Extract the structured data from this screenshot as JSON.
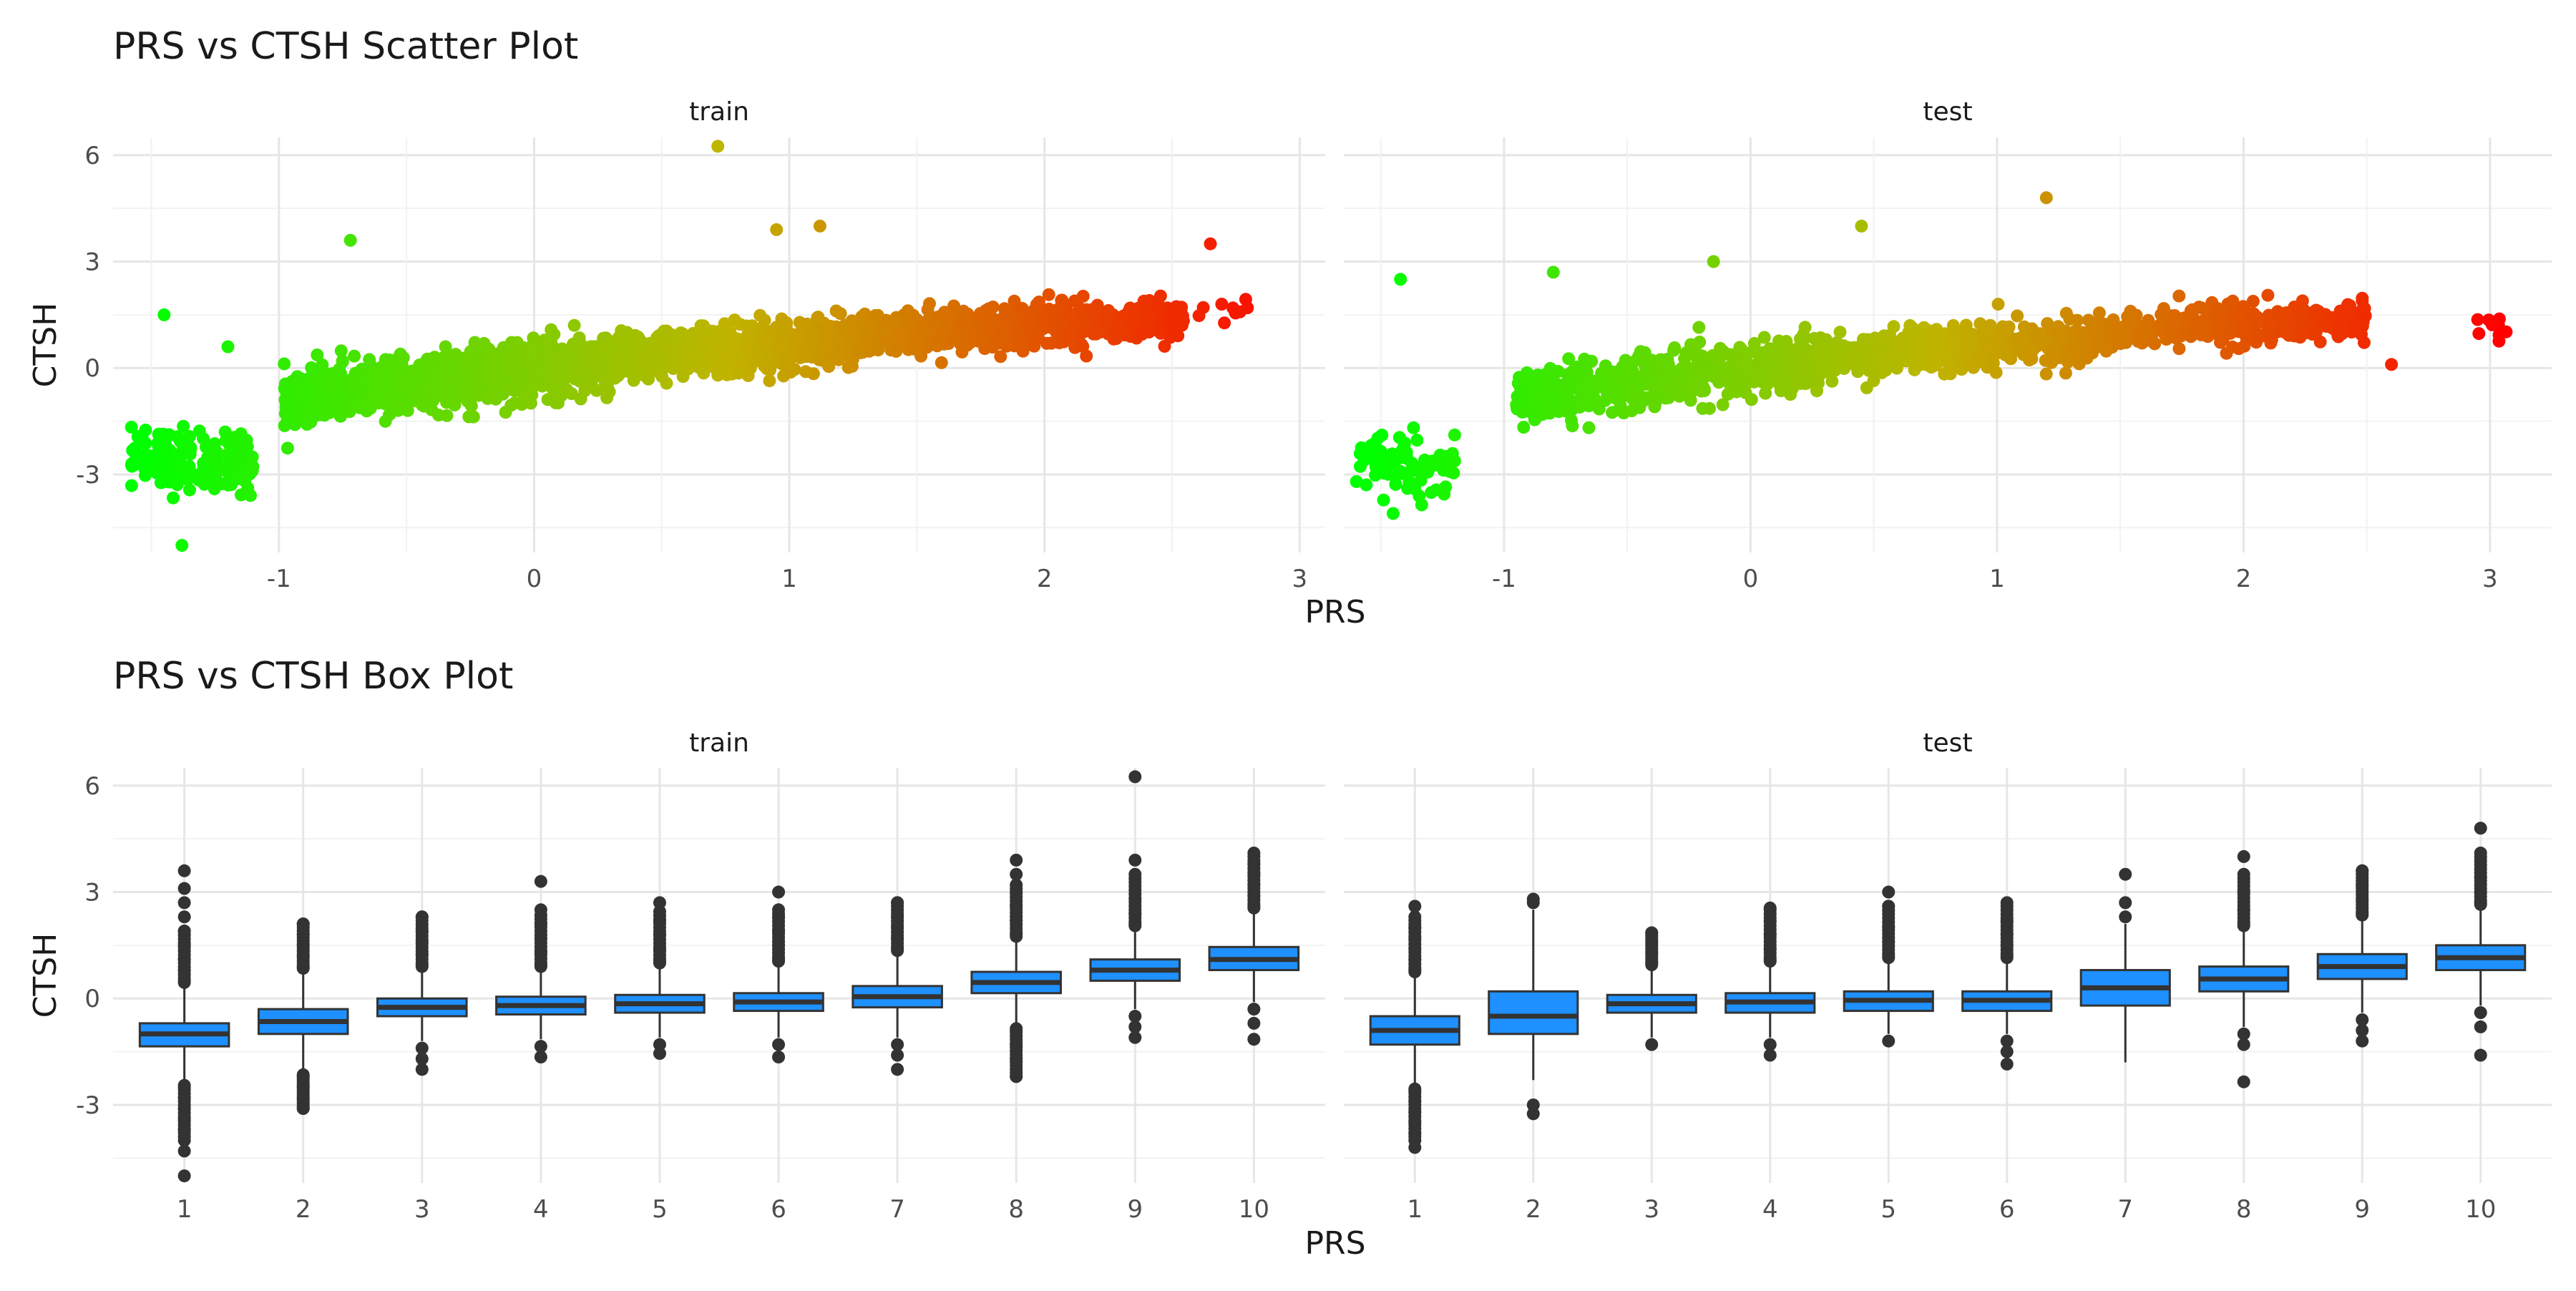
{
  "chart_data": [
    {
      "type": "scatter",
      "title": "PRS vs CTSH Scatter Plot",
      "xlabel": "PRS",
      "ylabel": "CTSH",
      "grid": true,
      "legend": "none",
      "color_scale": {
        "low": "#00ff00",
        "mid": "#c0b400",
        "high": "#ff0000"
      },
      "facets": [
        {
          "label": "train",
          "xlim": [
            -1.65,
            3.1
          ],
          "ylim": [
            -5.2,
            6.5
          ],
          "xticks": [
            -1,
            0,
            1,
            2,
            3
          ],
          "yticks": [
            -3,
            0,
            3,
            6
          ],
          "clusters": [
            {
              "x_range": [
                -1.58,
                -1.1
              ],
              "y_center": -2.6,
              "y_spread": 0.8,
              "n": 160
            },
            {
              "x_range": [
                -0.98,
                0.25
              ],
              "slope": 0.9,
              "y_at_x0": -0.05,
              "y_spread": 0.7,
              "n": 900
            },
            {
              "x_range": [
                0.25,
                1.3
              ],
              "slope": 0.55,
              "y_at_x0": 0.1,
              "y_spread": 0.6,
              "n": 800
            },
            {
              "x_range": [
                1.3,
                2.55
              ],
              "slope": 0.3,
              "y_at_x0": 0.6,
              "y_spread": 0.5,
              "n": 700
            },
            {
              "x_range": [
                2.55,
                2.8
              ],
              "y_center": 1.6,
              "y_spread": 0.4,
              "n": 10
            }
          ],
          "outliers": [
            [
              0.72,
              6.25
            ],
            [
              -1.38,
              -5.0
            ],
            [
              -0.72,
              3.6
            ],
            [
              -1.45,
              1.5
            ],
            [
              1.12,
              4.0
            ],
            [
              2.65,
              3.5
            ],
            [
              -1.2,
              0.6
            ],
            [
              0.95,
              3.9
            ]
          ]
        },
        {
          "label": "test",
          "xlim": [
            -1.65,
            3.25
          ],
          "ylim": [
            -5.2,
            6.5
          ],
          "xticks": [
            -1,
            0,
            1,
            2,
            3
          ],
          "yticks": [
            -3,
            0,
            3,
            6
          ],
          "clusters": [
            {
              "x_range": [
                -1.6,
                -1.2
              ],
              "y_center": -2.7,
              "y_spread": 0.7,
              "n": 80
            },
            {
              "x_range": [
                -0.95,
                0.3
              ],
              "slope": 0.85,
              "y_at_x0": -0.05,
              "y_spread": 0.7,
              "n": 600
            },
            {
              "x_range": [
                0.3,
                1.4
              ],
              "slope": 0.5,
              "y_at_x0": 0.15,
              "y_spread": 0.55,
              "n": 500
            },
            {
              "x_range": [
                1.4,
                2.5
              ],
              "slope": 0.3,
              "y_at_x0": 0.6,
              "y_spread": 0.5,
              "n": 400
            },
            {
              "x_range": [
                2.9,
                3.1
              ],
              "y_center": 1.1,
              "y_spread": 0.35,
              "n": 9
            }
          ],
          "outliers": [
            [
              1.2,
              4.8
            ],
            [
              -1.42,
              2.5
            ],
            [
              -1.45,
              -4.1
            ],
            [
              -0.15,
              3.0
            ],
            [
              0.45,
              4.0
            ],
            [
              -0.8,
              2.7
            ],
            [
              2.6,
              0.1
            ]
          ]
        }
      ]
    },
    {
      "type": "box",
      "title": "PRS vs CTSH Box Plot",
      "xlabel": "PRS",
      "ylabel": "CTSH",
      "grid": true,
      "fill_color": "#1e90ff",
      "categories": [
        "1",
        "2",
        "3",
        "4",
        "5",
        "6",
        "7",
        "8",
        "9",
        "10"
      ],
      "yticks": [
        -3,
        0,
        3,
        6
      ],
      "ylim": [
        -5.2,
        6.5
      ],
      "facets": [
        {
          "label": "train",
          "boxes": [
            {
              "q1": -1.35,
              "median": -1.0,
              "q3": -0.7,
              "lower": -2.3,
              "upper": 0.3,
              "outliers_hi": [
                0.5,
                0.8,
                1.1,
                1.5,
                1.9,
                2.3,
                2.7,
                3.1,
                3.6
              ],
              "outliers_lo": [
                -2.5,
                -2.8,
                -3.1,
                -3.4,
                -3.7,
                -4.0,
                -4.3,
                -5.0
              ]
            },
            {
              "q1": -1.0,
              "median": -0.65,
              "q3": -0.3,
              "lower": -2.0,
              "upper": 0.7,
              "outliers_hi": [
                0.9,
                1.2,
                1.5,
                1.8,
                2.1
              ],
              "outliers_lo": [
                -2.2,
                -2.5,
                -2.8,
                -3.1
              ]
            },
            {
              "q1": -0.5,
              "median": -0.25,
              "q3": 0.0,
              "lower": -1.2,
              "upper": 0.75,
              "outliers_hi": [
                0.95,
                1.25,
                1.6,
                1.9,
                2.3
              ],
              "outliers_lo": [
                -1.4,
                -1.7,
                -2.0
              ]
            },
            {
              "q1": -0.45,
              "median": -0.2,
              "q3": 0.05,
              "lower": -1.15,
              "upper": 0.75,
              "outliers_hi": [
                0.95,
                1.3,
                1.7,
                2.1,
                2.5,
                3.3
              ],
              "outliers_lo": [
                -1.35,
                -1.65
              ]
            },
            {
              "q1": -0.4,
              "median": -0.15,
              "q3": 0.1,
              "lower": -1.1,
              "upper": 0.85,
              "outliers_hi": [
                1.05,
                1.4,
                1.8,
                2.2,
                2.7
              ],
              "outliers_lo": [
                -1.3,
                -1.55
              ]
            },
            {
              "q1": -0.35,
              "median": -0.1,
              "q3": 0.15,
              "lower": -1.1,
              "upper": 0.9,
              "outliers_hi": [
                1.1,
                1.5,
                1.9,
                2.3,
                3.0
              ],
              "outliers_lo": [
                -1.3,
                -1.65
              ]
            },
            {
              "q1": -0.25,
              "median": 0.05,
              "q3": 0.35,
              "lower": -1.1,
              "upper": 1.2,
              "outliers_hi": [
                1.4,
                1.7,
                2.0,
                2.3,
                2.7
              ],
              "outliers_lo": [
                -1.3,
                -1.6,
                -2.0
              ]
            },
            {
              "q1": 0.15,
              "median": 0.45,
              "q3": 0.75,
              "lower": -0.7,
              "upper": 1.6,
              "outliers_hi": [
                1.8,
                2.2,
                2.6,
                3.0,
                3.5,
                3.9
              ],
              "outliers_lo": [
                -0.9,
                -1.3,
                -1.7,
                -2.2
              ]
            },
            {
              "q1": 0.5,
              "median": 0.8,
              "q3": 1.1,
              "lower": -0.3,
              "upper": 1.9,
              "outliers_hi": [
                2.1,
                2.4,
                2.8,
                3.9,
                6.25
              ],
              "outliers_lo": [
                -0.5,
                -0.8,
                -1.1
              ]
            },
            {
              "q1": 0.8,
              "median": 1.1,
              "q3": 1.45,
              "lower": -0.1,
              "upper": 2.4,
              "outliers_hi": [
                2.6,
                2.9,
                3.2,
                3.5,
                3.8,
                4.1
              ],
              "outliers_lo": [
                -0.3,
                -0.7,
                -1.15
              ]
            }
          ]
        },
        {
          "label": "test",
          "boxes": [
            {
              "q1": -1.3,
              "median": -0.9,
              "q3": -0.5,
              "lower": -2.4,
              "upper": 0.6,
              "outliers_hi": [
                0.8,
                1.1,
                1.4,
                1.7,
                2.0,
                2.3,
                2.6
              ],
              "outliers_lo": [
                -2.6,
                -2.9,
                -3.2,
                -3.5,
                -3.8,
                -4.2
              ]
            },
            {
              "q1": -1.0,
              "median": -0.5,
              "q3": 0.2,
              "lower": -2.3,
              "upper": 2.5,
              "outliers_hi": [
                2.7,
                2.8
              ],
              "outliers_lo": [
                -3.0,
                -3.25
              ]
            },
            {
              "q1": -0.4,
              "median": -0.15,
              "q3": 0.1,
              "lower": -1.1,
              "upper": 0.8,
              "outliers_hi": [
                1.0,
                1.3,
                1.6,
                1.85
              ],
              "outliers_lo": [
                -1.3
              ]
            },
            {
              "q1": -0.4,
              "median": -0.1,
              "q3": 0.15,
              "lower": -1.1,
              "upper": 0.9,
              "outliers_hi": [
                1.1,
                1.4,
                1.8,
                2.2,
                2.55
              ],
              "outliers_lo": [
                -1.3,
                -1.6
              ]
            },
            {
              "q1": -0.35,
              "median": -0.05,
              "q3": 0.2,
              "lower": -1.0,
              "upper": 1.0,
              "outliers_hi": [
                1.2,
                1.6,
                2.0,
                2.6,
                3.0
              ],
              "outliers_lo": [
                -1.2
              ]
            },
            {
              "q1": -0.35,
              "median": -0.05,
              "q3": 0.2,
              "lower": -1.0,
              "upper": 1.0,
              "outliers_hi": [
                1.2,
                1.5,
                1.8,
                2.2,
                2.7
              ],
              "outliers_lo": [
                -1.2,
                -1.5,
                -1.85
              ]
            },
            {
              "q1": -0.2,
              "median": 0.3,
              "q3": 0.8,
              "lower": -1.8,
              "upper": 2.1,
              "outliers_hi": [
                2.3,
                2.7,
                3.5
              ],
              "outliers_lo": []
            },
            {
              "q1": 0.2,
              "median": 0.55,
              "q3": 0.9,
              "lower": -0.8,
              "upper": 1.9,
              "outliers_hi": [
                2.1,
                2.5,
                3.0,
                4.0
              ],
              "outliers_lo": [
                -1.0,
                -1.3,
                -2.35
              ]
            },
            {
              "q1": 0.55,
              "median": 0.9,
              "q3": 1.25,
              "lower": -0.4,
              "upper": 2.2,
              "outliers_hi": [
                2.4,
                2.8,
                3.2,
                3.6
              ],
              "outliers_lo": [
                -0.6,
                -0.9,
                -1.2
              ]
            },
            {
              "q1": 0.8,
              "median": 1.15,
              "q3": 1.5,
              "lower": -0.2,
              "upper": 2.5,
              "outliers_hi": [
                2.7,
                3.0,
                3.4,
                4.8
              ],
              "outliers_lo": [
                -0.4,
                -0.8,
                -1.6
              ]
            }
          ]
        }
      ]
    }
  ]
}
